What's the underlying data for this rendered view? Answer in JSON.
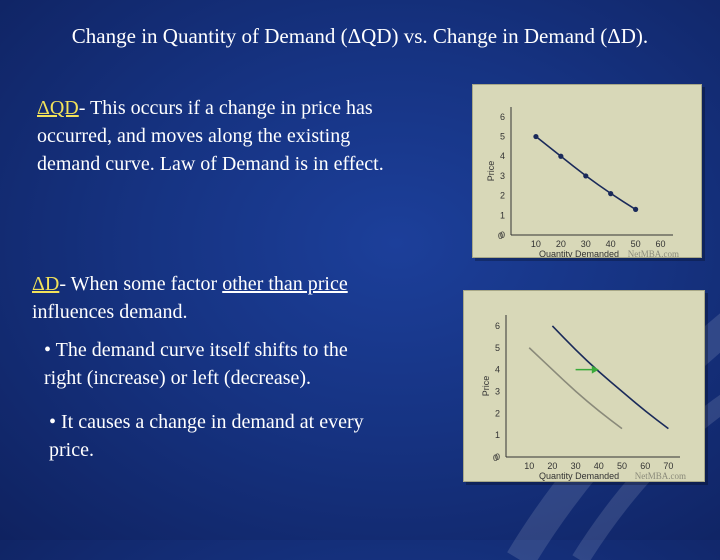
{
  "slide": {
    "title": "Change in Quantity of Demand (ΔQD) vs. Change in Demand (ΔD).",
    "qd_block": {
      "term": "ΔQD",
      "line1_rest": "- This occurs if a change in price has",
      "line2": "occurred, and moves along the existing",
      "line3": "demand curve. Law of Demand is in effect."
    },
    "d_block": {
      "term": "ΔD",
      "line1_pre": "- When some factor ",
      "line1_underlined": "other than price",
      "line2": "influences demand."
    },
    "bullets": [
      {
        "line1": "• The demand curve itself shifts to the",
        "line2": "right (increase) or left (decrease)."
      },
      {
        "line1": "• It causes a change in demand at every",
        "line2": "price."
      }
    ]
  },
  "colors": {
    "highlight": "#f2e25a",
    "shift_arrow": "#3aaa3a",
    "chart_bg": "#d8d8b8"
  },
  "chart_data": [
    {
      "type": "line",
      "xlabel": "Quantity Demanded",
      "ylabel": "Price",
      "x_ticks": [
        0,
        10,
        20,
        30,
        40,
        50,
        60
      ],
      "y_ticks": [
        0,
        1,
        2,
        3,
        4,
        5,
        6
      ],
      "xlim": [
        0,
        65
      ],
      "ylim": [
        0,
        6.5
      ],
      "series": [
        {
          "x": [
            10,
            20,
            30,
            40,
            50
          ],
          "y": [
            5,
            4,
            3,
            2.1,
            1.3
          ],
          "markers": true
        }
      ],
      "watermark": "NetMBA.com"
    },
    {
      "type": "line",
      "xlabel": "Quantity Demanded",
      "ylabel": "Price",
      "x_ticks": [
        0,
        10,
        20,
        30,
        40,
        50,
        60,
        70
      ],
      "y_ticks": [
        0,
        1,
        2,
        3,
        4,
        5,
        6
      ],
      "xlim": [
        0,
        75
      ],
      "ylim": [
        0,
        6.5
      ],
      "series": [
        {
          "x": [
            10,
            20,
            30,
            40,
            50
          ],
          "y": [
            5,
            4,
            3,
            2.1,
            1.3
          ],
          "color": "#8a8a7a"
        },
        {
          "x": [
            20,
            30,
            40,
            50,
            60,
            70
          ],
          "y": [
            6,
            4.9,
            3.9,
            3,
            2.1,
            1.3
          ],
          "color": "#1a2a5a"
        }
      ],
      "shift_arrow": {
        "from": [
          30,
          4
        ],
        "to": [
          40,
          4
        ]
      },
      "watermark": "NetMBA.com"
    }
  ]
}
